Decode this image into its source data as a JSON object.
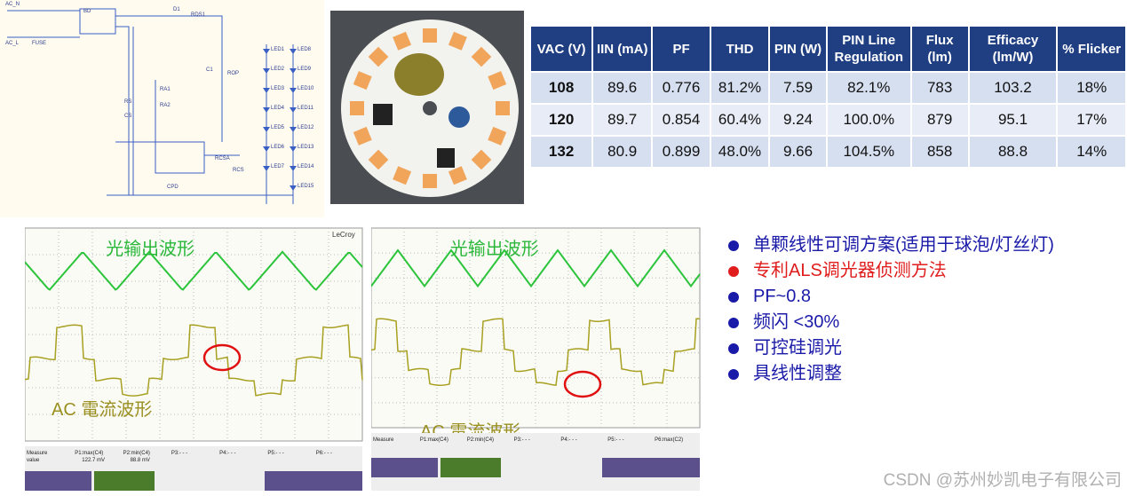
{
  "schematic": {
    "labels": [
      "AC_N",
      "AC_L",
      "FUSE",
      "BD",
      "D1",
      "RDS1",
      "C1",
      "ROP",
      "RS",
      "CS",
      "RA1",
      "RA2",
      "RCSA",
      "RCS",
      "CPD"
    ],
    "leds": [
      "LED1",
      "LED2",
      "LED3",
      "LED4",
      "LED5",
      "LED6",
      "LED7",
      "LED8",
      "LED9",
      "LED10",
      "LED11",
      "LED12",
      "LED13",
      "LED14",
      "LED15"
    ]
  },
  "table": {
    "header": [
      "VAC (V)",
      "IIN (mA)",
      "PF",
      "THD",
      "PIN (W)",
      "PIN Line Regulation",
      "Flux (lm)",
      "Efficacy (lm/W)",
      "% Flicker"
    ],
    "rows": [
      [
        "108",
        "89.6",
        "0.776",
        "81.2%",
        "7.59",
        "82.1%",
        "783",
        "103.2",
        "18%"
      ],
      [
        "120",
        "89.7",
        "0.854",
        "60.4%",
        "9.24",
        "100.0%",
        "879",
        "95.1",
        "17%"
      ],
      [
        "132",
        "80.9",
        "0.899",
        "48.0%",
        "9.66",
        "104.5%",
        "858",
        "88.8",
        "14%"
      ]
    ]
  },
  "scope_left": {
    "brand": "LeCroy",
    "light_label": "光输出波形",
    "current_label": "AC 電流波形",
    "measure": [
      "Measure",
      "P1:max(C4)",
      "P2:min(C4)",
      "P3:- - -",
      "P4:- - -",
      "P5:- - -",
      "P6:- - -"
    ],
    "readings": [
      "value",
      "122.7 mV",
      "88.8 mV"
    ]
  },
  "scope_right": {
    "light_label": "光输出波形",
    "current_label": "AC 電流波形",
    "measure": [
      "Measure",
      "P1:max(C4)",
      "P2:min(C4)",
      "P3:- - -",
      "P4:- - -",
      "P5:- - -",
      "P6:max(C2)"
    ]
  },
  "bullets": [
    {
      "text": "单颗线性可调方案(适用于球泡/灯丝灯)",
      "color": "#1a1aa8"
    },
    {
      "text": "专利ALS调光器侦测方法",
      "color": "#e01c1c"
    },
    {
      "text": "PF~0.8",
      "color": "#1a1aa8"
    },
    {
      "text": "频闪 <30%",
      "color": "#1a1aa8"
    },
    {
      "text": "可控硅调光",
      "color": "#1a1aa8"
    },
    {
      "text": "具线性调整",
      "color": "#1a1aa8"
    }
  ],
  "watermark": "CSDN @苏州妙凯电子有限公司"
}
